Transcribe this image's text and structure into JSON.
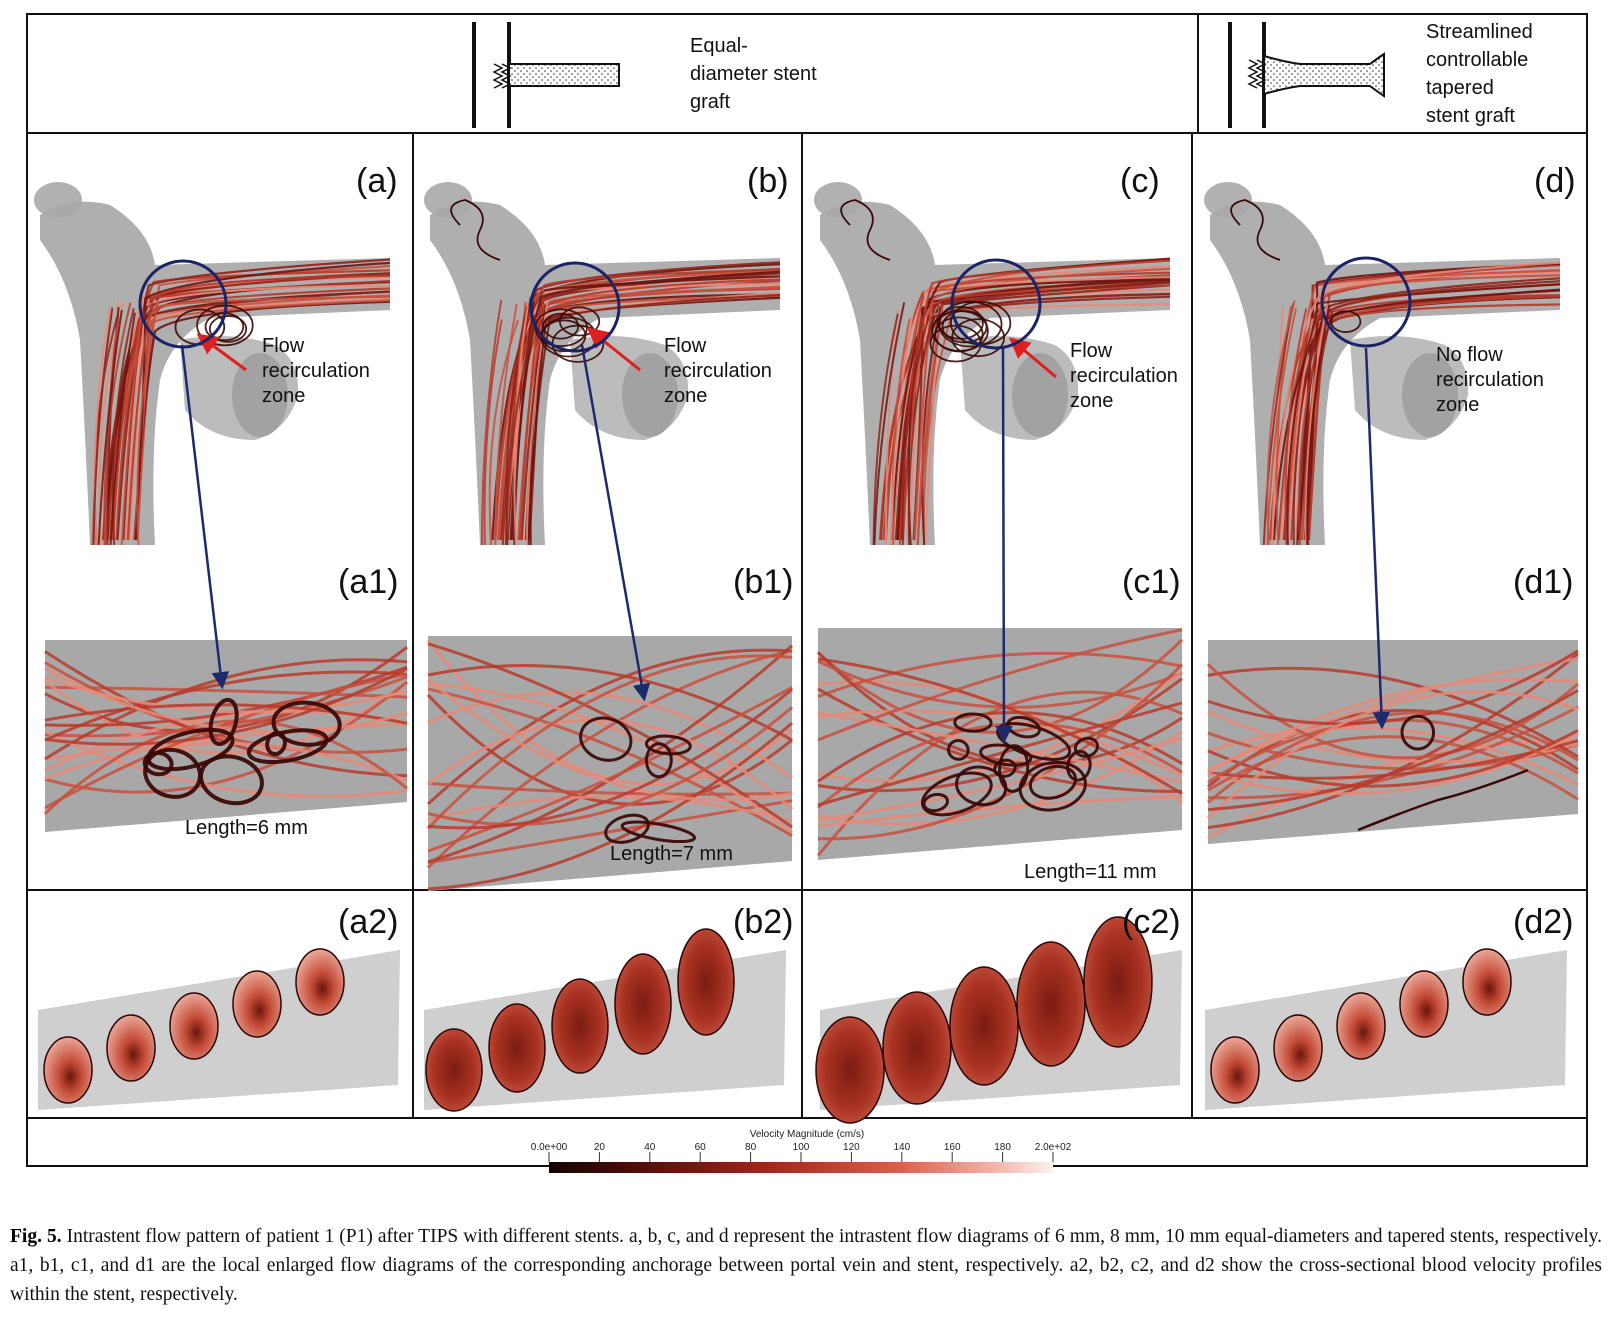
{
  "header": {
    "equal_stent": [
      "Equal-",
      "diameter stent",
      "graft"
    ],
    "tapered_stent": [
      "Streamlined",
      "controllable",
      "tapered",
      "stent graft"
    ]
  },
  "panels": {
    "a": "(a)",
    "b": "(b)",
    "c": "(c)",
    "d": "(d)",
    "a1": "(a1)",
    "b1": "(b1)",
    "c1": "(c1)",
    "d1": "(d1)",
    "a2": "(a2)",
    "b2": "(b2)",
    "c2": "(c2)",
    "d2": "(d2)"
  },
  "annotations": {
    "a": [
      "Flow",
      "recirculation",
      "zone"
    ],
    "b": [
      "Flow",
      "recirculation",
      "zone"
    ],
    "c": [
      "Flow",
      "recirculation",
      "zone"
    ],
    "d": [
      "No flow",
      "recirculation",
      "zone"
    ]
  },
  "lengths": {
    "a1": "Length=6 mm",
    "b1": "Length=7 mm",
    "c1": "Length=11 mm"
  },
  "colorbar": {
    "title": "Velocity Magnitude (cm/s)",
    "ticks": [
      "0.0e+00",
      "20",
      "40",
      "60",
      "80",
      "100",
      "120",
      "140",
      "160",
      "180",
      "2.0e+02"
    ],
    "range": [
      0,
      200
    ],
    "colors": [
      "#120404",
      "#5a0f0a",
      "#a32a1d",
      "#d9624e",
      "#f2b3a6",
      "#fdf1ee"
    ]
  },
  "colors": {
    "streamline_dark": "#6e1410",
    "streamline_mid": "#b83a2a",
    "streamline_light": "#e88a78",
    "vessel_gray": "#a8a8a8",
    "highlight_circle": "#1a2366",
    "recirculation_arrow": "#e02020",
    "link_arrow": "#1c2a6e"
  },
  "caption": {
    "label": "Fig. 5.",
    "text": "Intrastent flow pattern of patient 1 (P1) after TIPS with different stents. a, b, c, and d represent the intrastent flow diagrams of 6 mm, 8 mm, 10 mm equal-diameters and tapered stents, respectively. a1, b1, c1, and d1 are the local enlarged flow diagrams of the corresponding anchorage between portal vein and stent, respectively. a2, b2, c2, and d2 show the cross-sectional blood velocity profiles within the stent, respectively."
  }
}
